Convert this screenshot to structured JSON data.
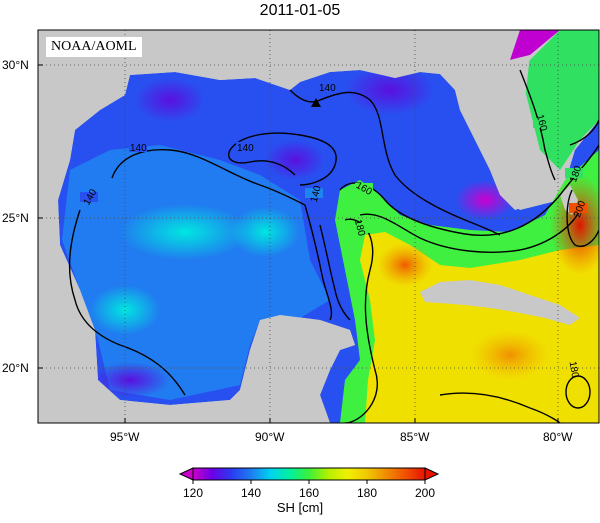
{
  "title": "2011-01-05",
  "credit": "NOAA/AOML",
  "lat_labels": [
    "30°N",
    "25°N",
    "20°N"
  ],
  "lon_labels": [
    "95°W",
    "90°W",
    "85°W",
    "80°W"
  ],
  "contour_labels": [
    "140",
    "140",
    "140",
    "140",
    "140",
    "160",
    "160",
    "180",
    "180",
    "200",
    "180"
  ],
  "colorbar": {
    "ticks": [
      "120",
      "140",
      "160",
      "180",
      "200"
    ],
    "unit_label": "SH [cm]",
    "colors": [
      "#c800c8",
      "#6a00e8",
      "#2a3cf0",
      "#1e7cf0",
      "#00d2f0",
      "#00f0a0",
      "#3cf03c",
      "#b4f000",
      "#f0f000",
      "#f0c800",
      "#f08c00",
      "#f05000",
      "#e61400"
    ]
  },
  "marker": "triangle"
}
